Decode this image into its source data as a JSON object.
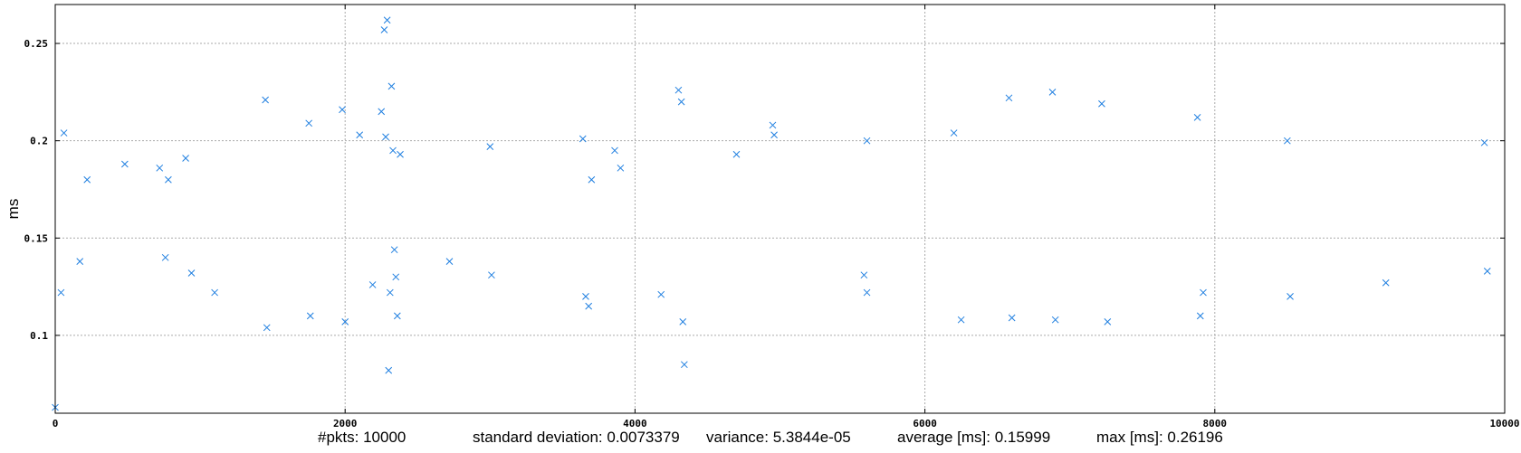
{
  "chart_data": {
    "type": "scatter",
    "title": "",
    "xlabel": "",
    "ylabel": "ms",
    "xlim": [
      0,
      10000
    ],
    "ylim": [
      0.06,
      0.27
    ],
    "x_ticks": [
      0,
      2000,
      4000,
      6000,
      8000,
      10000
    ],
    "x_tick_labels": [
      "0",
      "2000",
      "4000",
      "6000",
      "8000",
      "10000"
    ],
    "y_ticks": [
      0.1,
      0.15,
      0.2,
      0.25
    ],
    "y_tick_labels": [
      "0.1",
      "0.15",
      "0.2",
      "0.25"
    ],
    "grid": true,
    "marker": "x",
    "series_color": "#1f7fe0",
    "series": [
      {
        "name": "",
        "x": [
          0,
          40,
          60,
          170,
          220,
          480,
          720,
          760,
          780,
          900,
          940,
          1100,
          1450,
          1460,
          1750,
          1760,
          1980,
          2000,
          2100,
          2190,
          2250,
          2270,
          2280,
          2290,
          2300,
          2310,
          2320,
          2330,
          2340,
          2350,
          2360,
          2380,
          2720,
          3000,
          3010,
          3640,
          3660,
          3680,
          3700,
          3860,
          3900,
          4180,
          4300,
          4320,
          4330,
          4340,
          4700,
          4950,
          4960,
          5580,
          5600,
          5600,
          6200,
          6250,
          6580,
          6600,
          6880,
          6900,
          7220,
          7260,
          7880,
          7900,
          7920,
          8500,
          8520,
          9180,
          9860,
          9880
        ],
        "y": [
          0.063,
          0.122,
          0.204,
          0.138,
          0.18,
          0.188,
          0.186,
          0.14,
          0.18,
          0.191,
          0.132,
          0.122,
          0.221,
          0.104,
          0.209,
          0.11,
          0.216,
          0.107,
          0.203,
          0.126,
          0.215,
          0.257,
          0.202,
          0.262,
          0.082,
          0.122,
          0.228,
          0.195,
          0.144,
          0.13,
          0.11,
          0.193,
          0.138,
          0.197,
          0.131,
          0.201,
          0.12,
          0.115,
          0.18,
          0.195,
          0.186,
          0.121,
          0.226,
          0.22,
          0.107,
          0.085,
          0.193,
          0.208,
          0.203,
          0.131,
          0.2,
          0.122,
          0.204,
          0.108,
          0.222,
          0.109,
          0.225,
          0.108,
          0.219,
          0.107,
          0.212,
          0.11,
          0.122,
          0.2,
          0.12,
          0.127,
          0.199,
          0.133
        ]
      }
    ]
  },
  "stats": {
    "pkts": "#pkts: 10000",
    "std": "standard deviation: 0.0073379",
    "variance": "variance: 5.3844e-05",
    "average": "average [ms]: 0.15999",
    "max": "max [ms]: 0.26196"
  }
}
